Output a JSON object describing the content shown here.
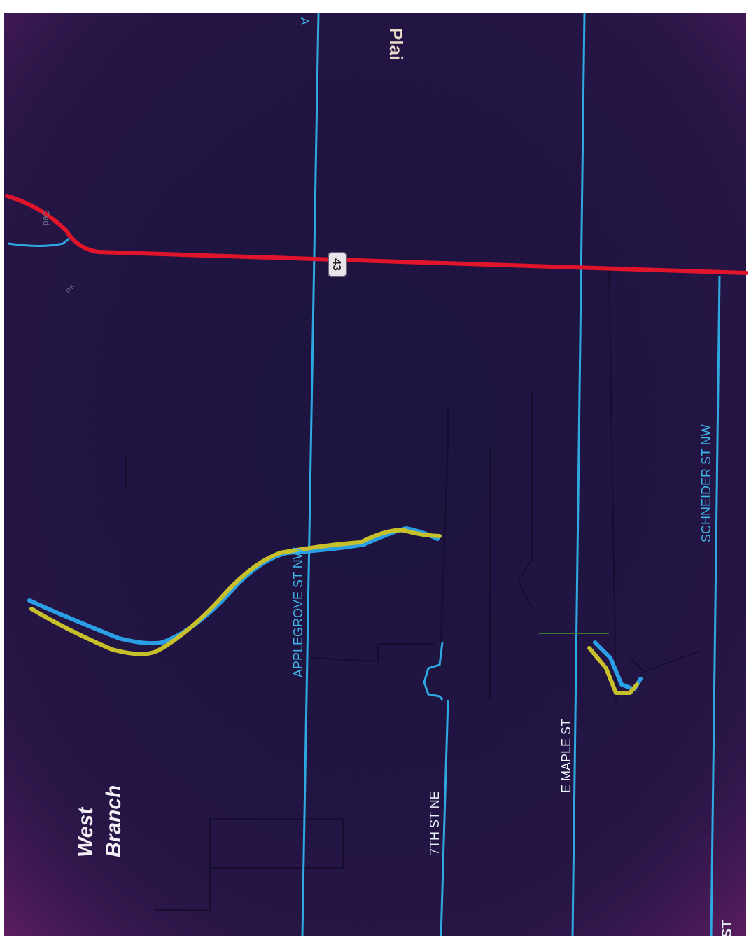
{
  "map": {
    "background_color": "#1e1440",
    "edge_tint_color": "#5a1a5e",
    "street_color": "#2ea8e0",
    "highway_color": "#e0142a",
    "label_color": "#3fb6ea",
    "place_label": "West Branch",
    "place_label_lines": [
      "West",
      "Branch"
    ],
    "top_cut_label": "Plai",
    "corner_label": "A",
    "bottom_corner_label": "ST",
    "small_label_top": "Ced",
    "small_label_left": "Ra",
    "highway": {
      "shield": "43",
      "icon": "route-shield-icon"
    },
    "streets": [
      {
        "id": "applegrove",
        "label": "APPLEGROVE ST NW"
      },
      {
        "id": "7th",
        "label": "7TH ST NE"
      },
      {
        "id": "maple",
        "label": "E MAPLE ST"
      },
      {
        "id": "schneider",
        "label": "SCHNEIDER ST NW"
      }
    ],
    "routes": [
      {
        "name": "",
        "color": "#2b9fe6"
      },
      {
        "name": "",
        "color": "#c8c02a"
      }
    ]
  }
}
